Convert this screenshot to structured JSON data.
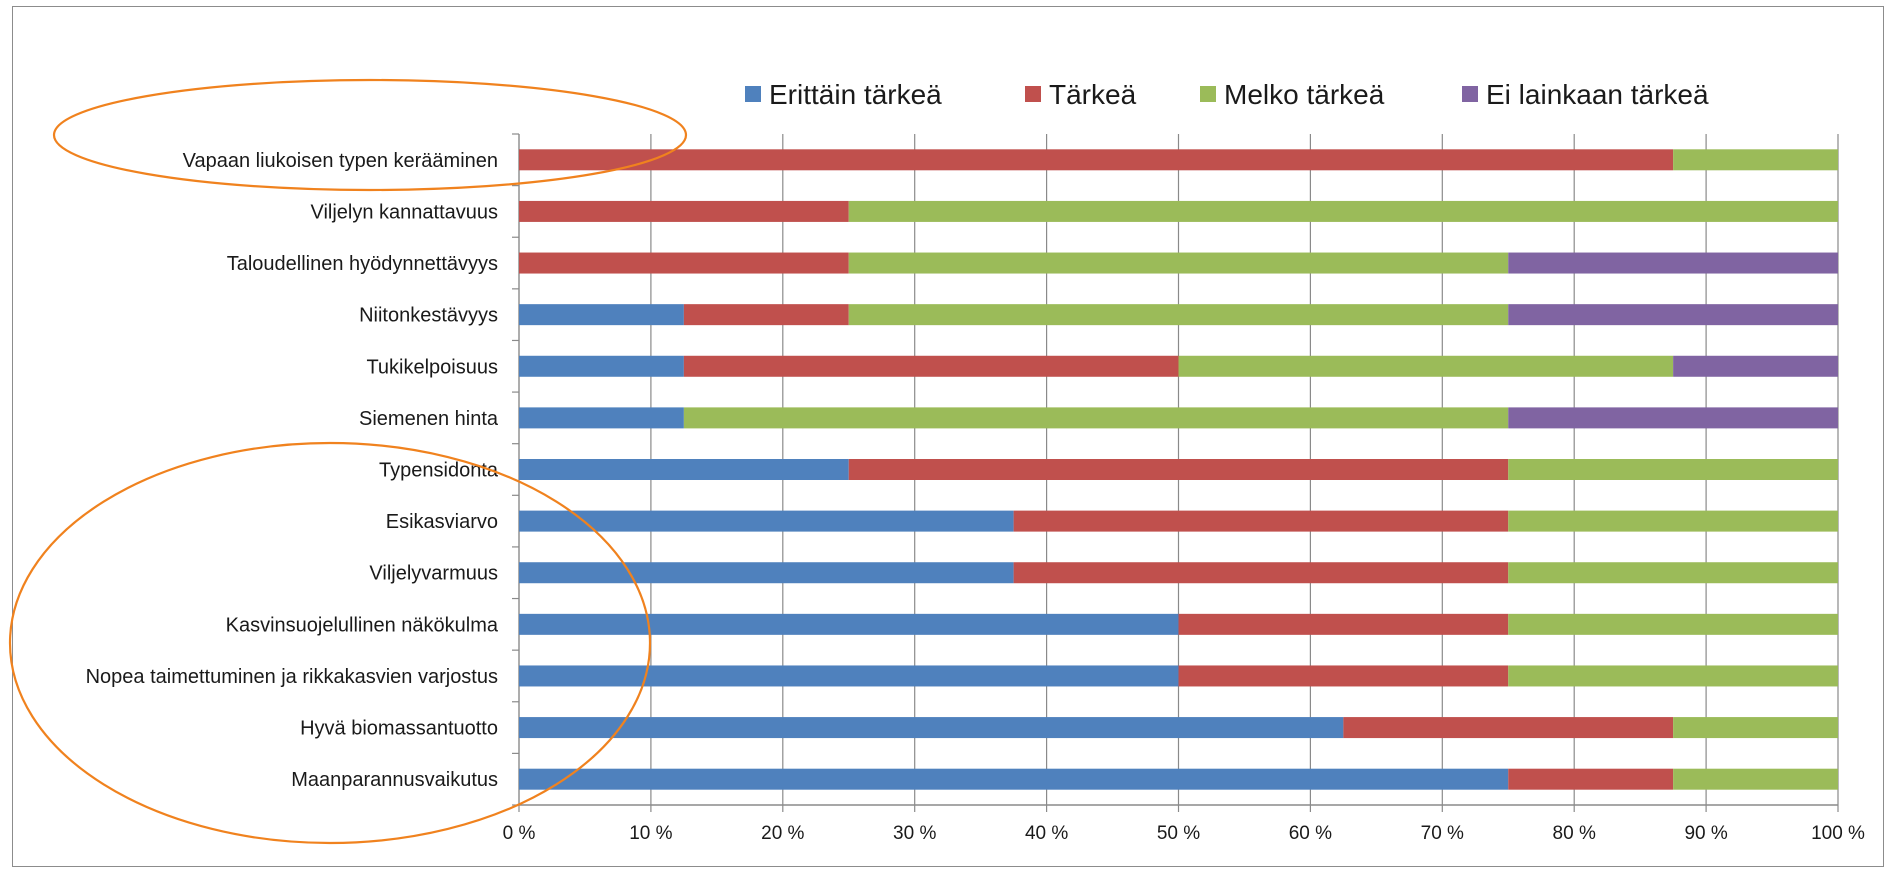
{
  "chart_data": {
    "type": "bar",
    "orientation": "horizontal",
    "stacked": "percent",
    "categories": [
      "Vapaan liukoisen typen kerääminen",
      "Viljelyn kannattavuus",
      "Taloudellinen hyödynnettävyys",
      "Niitonkestävyys",
      "Tukikelpoisuus",
      "Siemenen hinta",
      "Typensidonta",
      "Esikasviarvo",
      "Viljelyvarmuus",
      "Kasvinsuojelullinen näkökulma",
      "Nopea taimettuminen ja rikkakasvien varjostus",
      "Hyvä biomassantuotto",
      "Maanparannusvaikutus"
    ],
    "series": [
      {
        "name": "Erittäin tärkeä",
        "color": "#4F81BD",
        "values": [
          0,
          0,
          0,
          12.5,
          12.5,
          12.5,
          25,
          37.5,
          37.5,
          50,
          50,
          62.5,
          75
        ]
      },
      {
        "name": "Tärkeä",
        "color": "#C0504D",
        "values": [
          87.5,
          25,
          25,
          12.5,
          37.5,
          0,
          50,
          37.5,
          37.5,
          25,
          25,
          25,
          12.5
        ]
      },
      {
        "name": "Melko tärkeä",
        "color": "#9BBB59",
        "values": [
          12.5,
          75,
          50,
          50,
          37.5,
          62.5,
          25,
          25,
          25,
          25,
          25,
          12.5,
          12.5
        ]
      },
      {
        "name": "Ei lainkaan tärkeä",
        "color": "#8064A2",
        "values": [
          0,
          0,
          25,
          25,
          12.5,
          25,
          0,
          0,
          0,
          0,
          0,
          0,
          0
        ]
      }
    ],
    "xticks": [
      "0 %",
      "10 %",
      "20 %",
      "30 %",
      "40 %",
      "50 %",
      "60 %",
      "70 %",
      "80 %",
      "90 %",
      "100 %"
    ],
    "xlim": [
      0,
      100
    ],
    "grid": true,
    "legend_position": "top",
    "annotations": [
      {
        "type": "ellipse",
        "color": "#F0821E",
        "encloses": [
          "Vapaan liukoisen typen kerääminen"
        ]
      },
      {
        "type": "ellipse",
        "color": "#F0821E",
        "encloses": [
          "Typensidonta",
          "Esikasviarvo",
          "Viljelyvarmuus",
          "Kasvinsuojelullinen näkökulma",
          "Nopea taimettuminen ja rikkakasvien varjostus",
          "Hyvä biomassantuotto",
          "Maanparannusvaikutus"
        ]
      }
    ]
  }
}
